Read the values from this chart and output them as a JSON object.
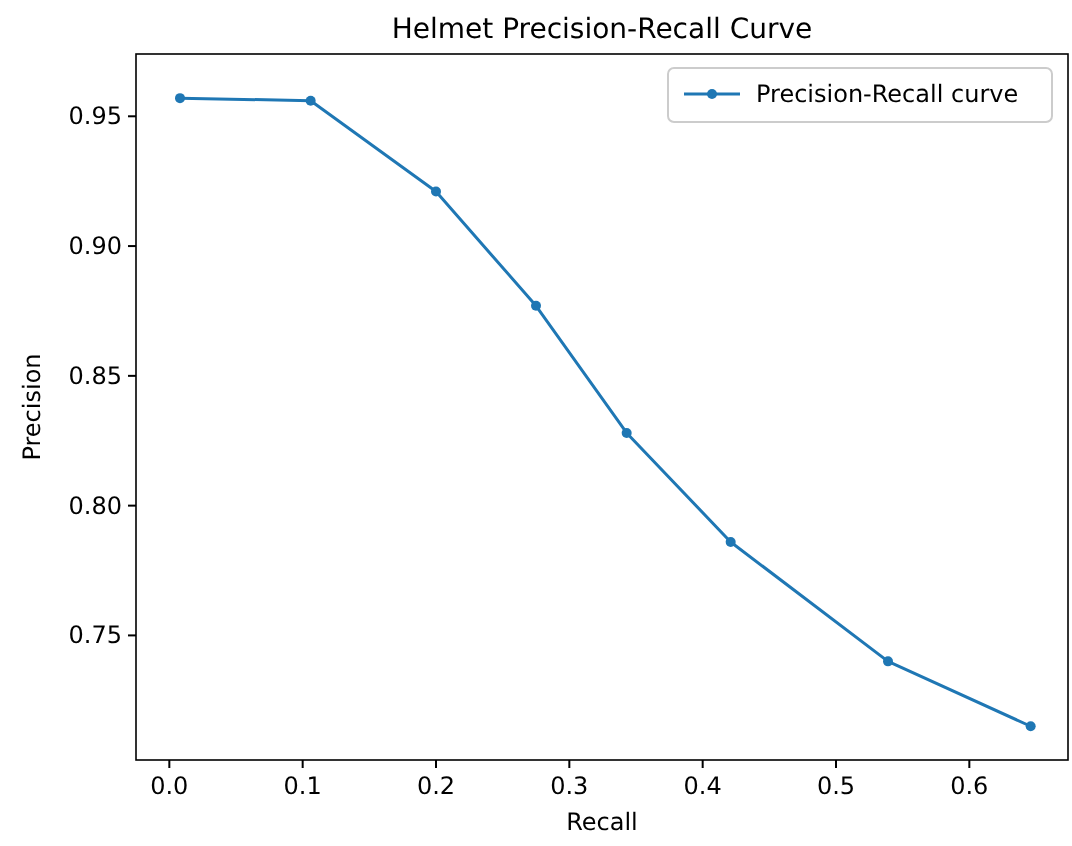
{
  "chart_data": {
    "type": "line",
    "title": "Helmet Precision-Recall Curve",
    "xlabel": "Recall",
    "ylabel": "Precision",
    "x": [
      0.008,
      0.106,
      0.2,
      0.275,
      0.343,
      0.421,
      0.539,
      0.646
    ],
    "series": [
      {
        "name": "Precision-Recall curve",
        "color": "#1f77b4",
        "values": [
          0.957,
          0.956,
          0.921,
          0.877,
          0.828,
          0.786,
          0.74,
          0.715
        ]
      }
    ],
    "xlim": [
      -0.025,
      0.674
    ],
    "ylim": [
      0.702,
      0.974
    ],
    "xticks": [
      {
        "value": 0,
        "label": "0.0"
      },
      0.1,
      0.2,
      0.3,
      0.4,
      0.5,
      0.6
    ],
    "yticks": [
      0.75,
      {
        "value": 0.8,
        "label": "0.80"
      },
      0.85,
      {
        "value": 0.9,
        "label": "0.90"
      },
      0.95
    ],
    "grid": false,
    "legend": "top right",
    "marker": "circle",
    "line_style": "solid"
  }
}
